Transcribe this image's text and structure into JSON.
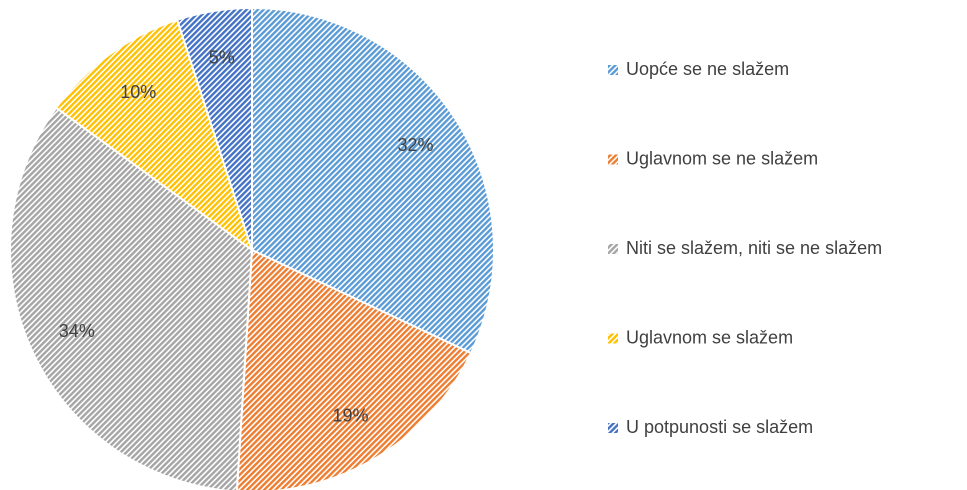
{
  "chart_data": {
    "type": "pie",
    "categories": [
      "Uopće se ne slažem",
      "Uglavnom se ne slažem",
      "Niti se slažem, niti se ne slažem",
      "Uglavnom se slažem",
      "U potpunosti se slažem"
    ],
    "values": [
      32,
      19,
      34,
      10,
      5
    ],
    "value_labels": [
      "32%",
      "19%",
      "34%",
      "10%",
      "5%"
    ],
    "colors": [
      "#5b9bd5",
      "#ed7d31",
      "#a5a5a5",
      "#ffc000",
      "#4472c4"
    ],
    "legend": "right"
  }
}
